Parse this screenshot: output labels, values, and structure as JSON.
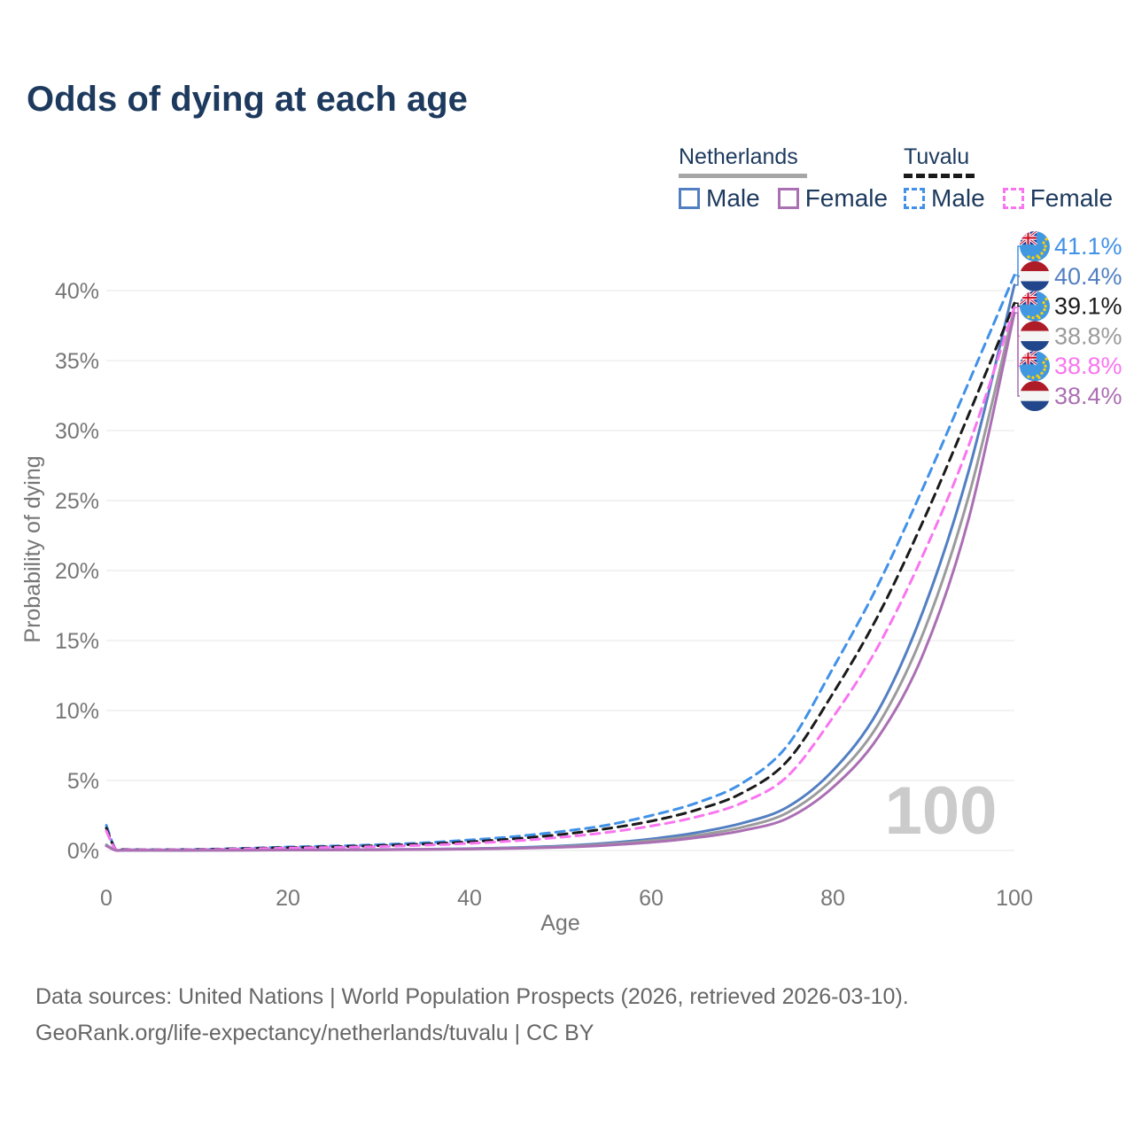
{
  "title": "Odds of dying at each age",
  "legend": {
    "groups": [
      {
        "country": "Netherlands",
        "line_style": "solid",
        "underline_color": "#a6a6a6",
        "items": [
          {
            "label": "Male",
            "color": "#527fc2"
          },
          {
            "label": "Female",
            "color": "#ab6fb3"
          }
        ]
      },
      {
        "country": "Tuvalu",
        "line_style": "dashed",
        "underline_color": "#1a1a1a",
        "items": [
          {
            "label": "Male",
            "color": "#4191e8"
          },
          {
            "label": "Female",
            "color": "#f975f0"
          }
        ]
      }
    ]
  },
  "watermark_age": "100",
  "footer": {
    "line1": "Data sources: United Nations | World Population Prospects (2026, retrieved 2026-03-10).",
    "line2": "GeoRank.org/life-expectancy/netherlands/tuvalu | CC BY"
  },
  "chart_data": {
    "type": "line",
    "title": "Odds of dying at each age",
    "xlabel": "Age",
    "ylabel": "Probability of dying",
    "xlim": [
      0,
      100
    ],
    "ylim_percent": [
      0,
      43
    ],
    "x_ticks": [
      0,
      20,
      40,
      60,
      80,
      100
    ],
    "y_tick_values": [
      0,
      5,
      10,
      15,
      20,
      25,
      30,
      35,
      40
    ],
    "y_tick_labels": [
      "0%",
      "5%",
      "10%",
      "15%",
      "20%",
      "25%",
      "30%",
      "35%",
      "40%"
    ],
    "grid": "horizontal",
    "legend_position": "top-right",
    "unit": "percent probability of dying at each age",
    "ages": [
      0,
      1,
      2,
      5,
      10,
      15,
      20,
      25,
      30,
      35,
      40,
      45,
      50,
      55,
      60,
      65,
      70,
      75,
      80,
      85,
      90,
      95,
      100
    ],
    "series": [
      {
        "name": "Tuvalu Male",
        "country": "Tuvalu",
        "sex": "Male",
        "flag": "tuvalu",
        "color": "#4191e8",
        "dashed": true,
        "end_value": 41.1,
        "end_label": "41.1%",
        "values": [
          1.8,
          0.12,
          0.08,
          0.06,
          0.08,
          0.15,
          0.25,
          0.32,
          0.42,
          0.55,
          0.75,
          1.0,
          1.35,
          1.8,
          2.5,
          3.4,
          4.8,
          7.5,
          13.0,
          19.0,
          26.0,
          33.5,
          41.1
        ]
      },
      {
        "name": "Netherlands Male",
        "country": "Netherlands",
        "sex": "Male",
        "flag": "netherlands",
        "color": "#527fc2",
        "dashed": false,
        "end_value": 40.4,
        "end_label": "40.4%",
        "values": [
          0.4,
          0.03,
          0.02,
          0.01,
          0.01,
          0.03,
          0.05,
          0.06,
          0.07,
          0.09,
          0.13,
          0.2,
          0.32,
          0.52,
          0.82,
          1.28,
          1.95,
          3.1,
          5.7,
          10.0,
          17.2,
          27.2,
          40.4
        ]
      },
      {
        "name": "Tuvalu Both sexes",
        "country": "Tuvalu",
        "sex": "Both",
        "flag": "tuvalu",
        "color": "#1a1a1a",
        "dashed": true,
        "end_value": 39.1,
        "end_label": "39.1%",
        "values": [
          1.6,
          0.1,
          0.07,
          0.05,
          0.07,
          0.13,
          0.21,
          0.27,
          0.35,
          0.46,
          0.62,
          0.84,
          1.14,
          1.55,
          2.1,
          2.9,
          4.1,
          6.4,
          11.2,
          16.8,
          23.6,
          31.2,
          39.1
        ]
      },
      {
        "name": "Netherlands Both sexes",
        "country": "Netherlands",
        "sex": "Both",
        "flag": "netherlands",
        "color": "#9b9b9b",
        "dashed": false,
        "end_value": 38.8,
        "end_label": "38.8%",
        "values": [
          0.37,
          0.03,
          0.02,
          0.01,
          0.01,
          0.025,
          0.04,
          0.05,
          0.06,
          0.08,
          0.11,
          0.17,
          0.27,
          0.44,
          0.7,
          1.08,
          1.66,
          2.7,
          5.1,
          9.0,
          15.6,
          25.4,
          38.8
        ]
      },
      {
        "name": "Tuvalu Female",
        "country": "Tuvalu",
        "sex": "Female",
        "flag": "tuvalu",
        "color": "#f975f0",
        "dashed": true,
        "end_value": 38.8,
        "end_label": "38.8%",
        "values": [
          1.4,
          0.09,
          0.06,
          0.05,
          0.06,
          0.11,
          0.17,
          0.22,
          0.28,
          0.38,
          0.51,
          0.69,
          0.94,
          1.28,
          1.75,
          2.4,
          3.4,
          5.3,
          9.5,
          14.6,
          21.2,
          29.0,
          38.8
        ]
      },
      {
        "name": "Netherlands Female",
        "country": "Netherlands",
        "sex": "Female",
        "flag": "netherlands",
        "color": "#ab6fb3",
        "dashed": false,
        "end_value": 38.4,
        "end_label": "38.4%",
        "values": [
          0.33,
          0.02,
          0.01,
          0.01,
          0.01,
          0.02,
          0.03,
          0.04,
          0.05,
          0.07,
          0.1,
          0.15,
          0.23,
          0.37,
          0.58,
          0.92,
          1.42,
          2.3,
          4.5,
          8.1,
          14.1,
          23.8,
          38.4
        ]
      }
    ]
  },
  "colors": {
    "title": "#1d3a5e",
    "axis_text": "#767676",
    "gridline": "#ebebeb",
    "watermark": "#cbcbcb",
    "footer_text": "#666666"
  }
}
